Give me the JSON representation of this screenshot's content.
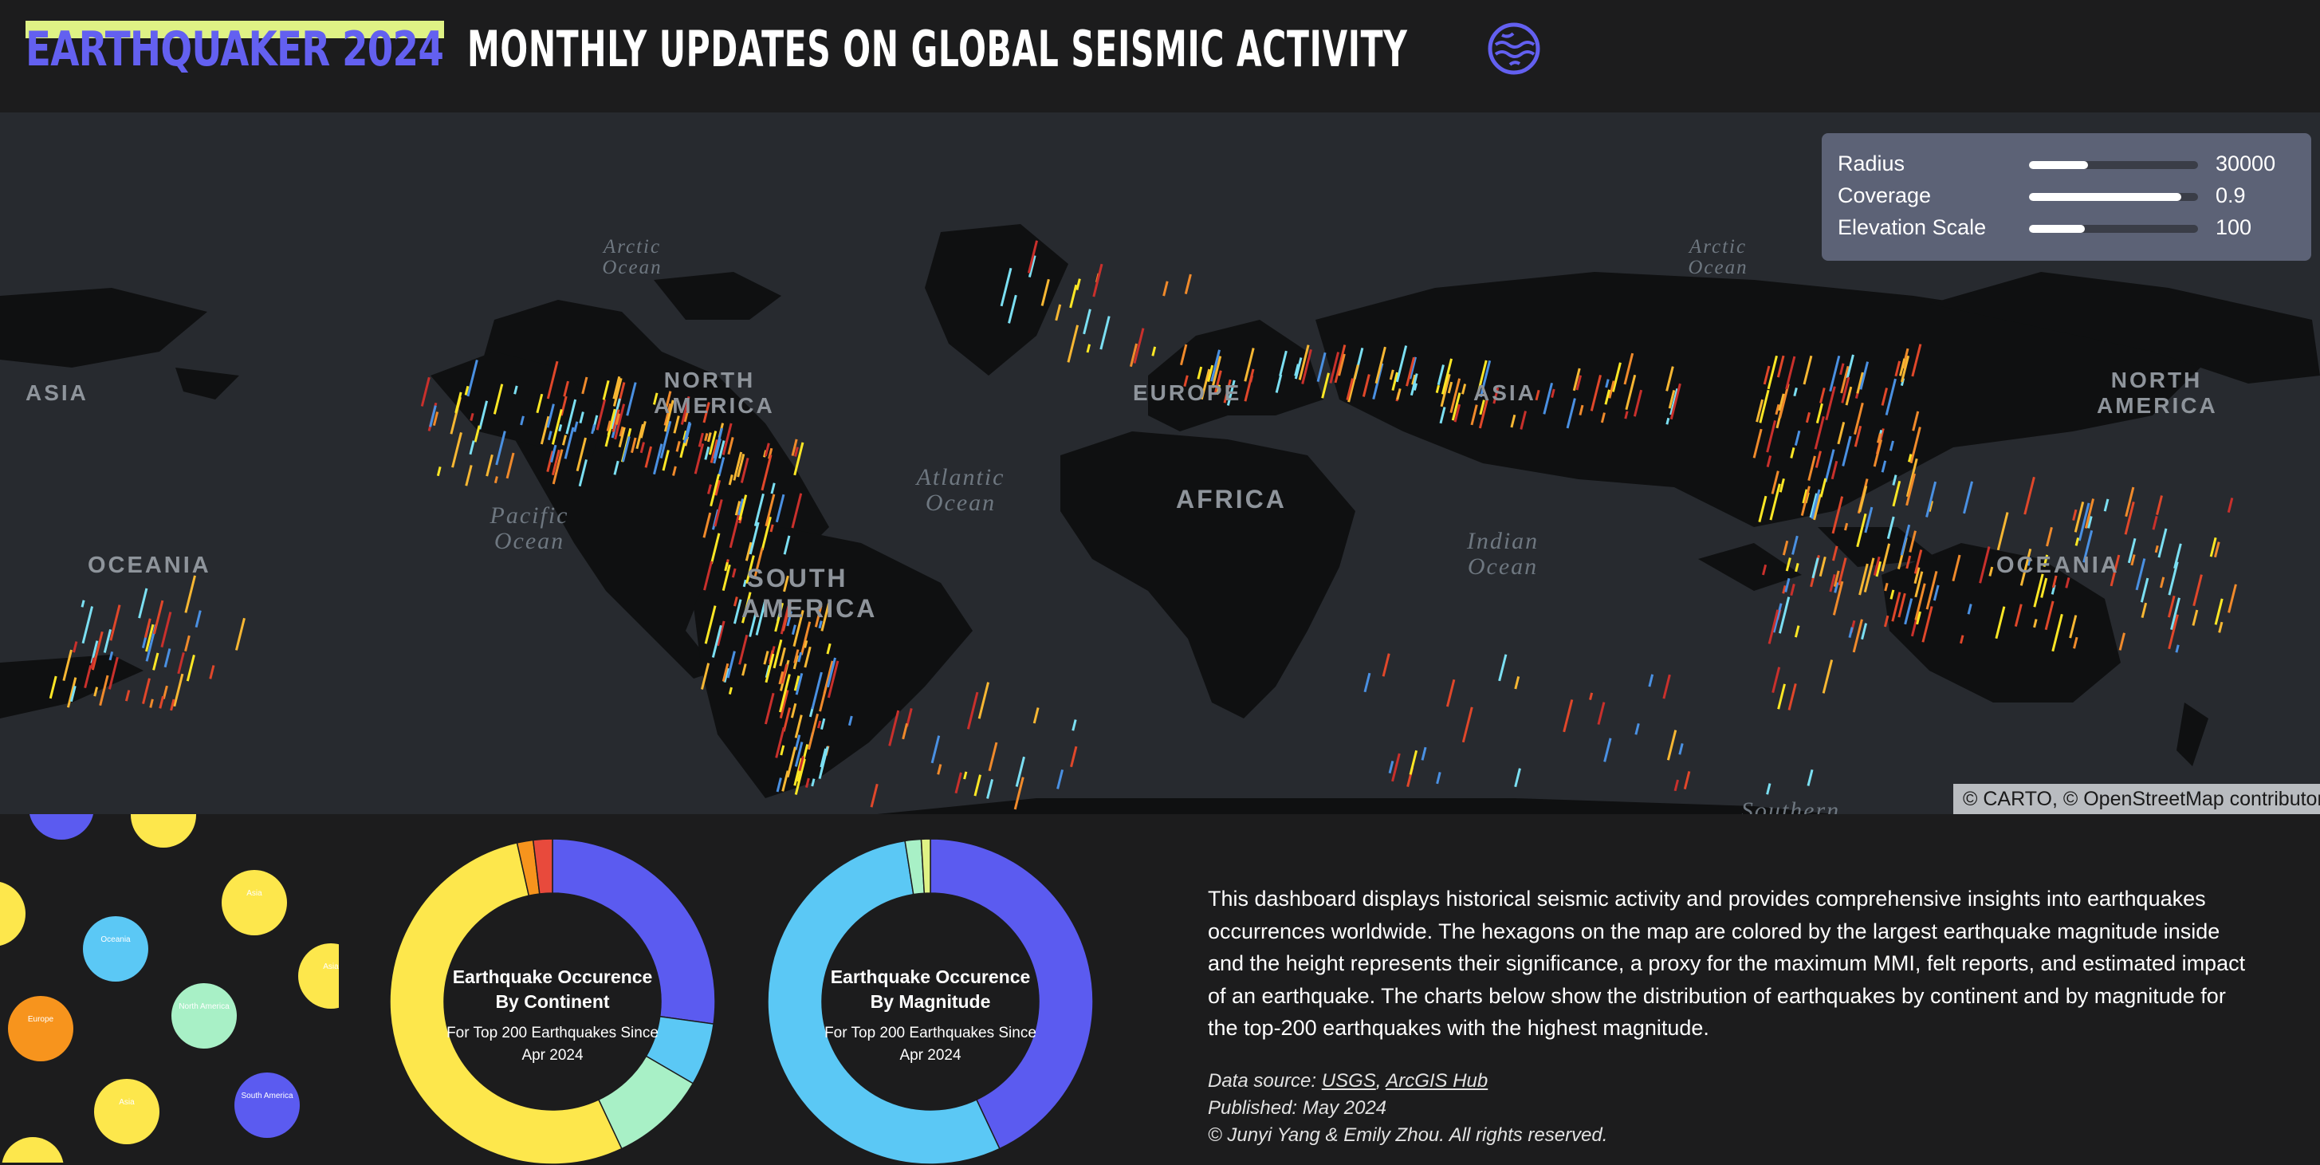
{
  "header": {
    "brand": "EARTHQUAKER 2024",
    "title": "MONTHLY UPDATES ON GLOBAL SEISMIC ACTIVITY",
    "brand_color": "#6360f0",
    "highlight_color": "#dff285",
    "icon": "globe-icon"
  },
  "map": {
    "continent_labels": [
      "ASIA",
      "NORTH AMERICA",
      "EUROPE",
      "ASIA",
      "NORTH AMERICA",
      "AFRICA",
      "SOUTH AMERICA",
      "OCEANIA",
      "OCEANIA"
    ],
    "ocean_labels": [
      "Arctic Ocean",
      "Arctic Ocean",
      "Pacific Ocean",
      "Atlantic Ocean",
      "Indian Ocean",
      "Southern"
    ],
    "attribution": "© CARTO, © OpenStreetMap contributors",
    "controls": [
      {
        "label": "Radius",
        "value": "30000",
        "level": 0.35
      },
      {
        "label": "Coverage",
        "value": "0.9",
        "level": 0.9
      },
      {
        "label": "Elevation Scale",
        "value": "100",
        "level": 0.33
      }
    ],
    "hex_colors": [
      "#fde725",
      "#f7b733",
      "#f08a2b",
      "#e0472a",
      "#c9302c",
      "#7bdff2",
      "#4a90e2"
    ]
  },
  "bubbles": {
    "items": [
      {
        "title": "Asia",
        "color": "#fde74c"
      },
      {
        "title": "Oceania",
        "color": "#5bc8f5"
      },
      {
        "title": "North America",
        "color": "#a8f0c6"
      },
      {
        "title": "Europe",
        "color": "#f7941d"
      },
      {
        "title": "Asia",
        "color": "#fde74c"
      },
      {
        "title": "South America",
        "color": "#5b5bf0"
      },
      {
        "title": "Asia",
        "color": "#fde74c"
      }
    ]
  },
  "chart_data": [
    {
      "type": "pie",
      "title": "Earthquake Occurence By Continent",
      "subtitle": "For Top 200 Earthquakes Since Apr 2024",
      "categories": [
        "",
        "",
        "",
        "",
        "",
        ""
      ],
      "values": [
        27.2,
        6.2,
        9.6,
        53.5,
        1.6,
        1.9
      ],
      "colors": [
        "#5b5bf0",
        "#5bc8f5",
        "#a8f0c6",
        "#fde74c",
        "#f7941d",
        "#e84a3c"
      ]
    },
    {
      "type": "pie",
      "title": "Earthquake Occurence By Magnitude",
      "subtitle": "For Top 200 Earthquakes Since Apr 2024",
      "categories": [
        "",
        "",
        "",
        ""
      ],
      "values": [
        43.0,
        54.5,
        1.6,
        0.9
      ],
      "colors": [
        "#5b5bf0",
        "#5bc8f5",
        "#a8f0c6",
        "#dff285"
      ]
    }
  ],
  "description": {
    "text": "This dashboard displays historical seismic activity and provides comprehensive insights into earthquakes occurrences worldwide. The hexagons on the map are colored by the largest earthquake magnitude inside and the height represents their significance, a proxy for the maximum MMI, felt reports, and estimated impact of an earthquake. The charts below show the distribution of earthquakes by continent and by magnitude for the top-200 earthquakes with the highest magnitude.",
    "source_label": "Data source: ",
    "source_usgs": "USGS",
    "source_sep": ", ",
    "source_arcgis": "ArcGIS Hub",
    "published": "Published: May 2024",
    "copyright": "© Junyi Yang & Emily Zhou. All rights reserved."
  }
}
